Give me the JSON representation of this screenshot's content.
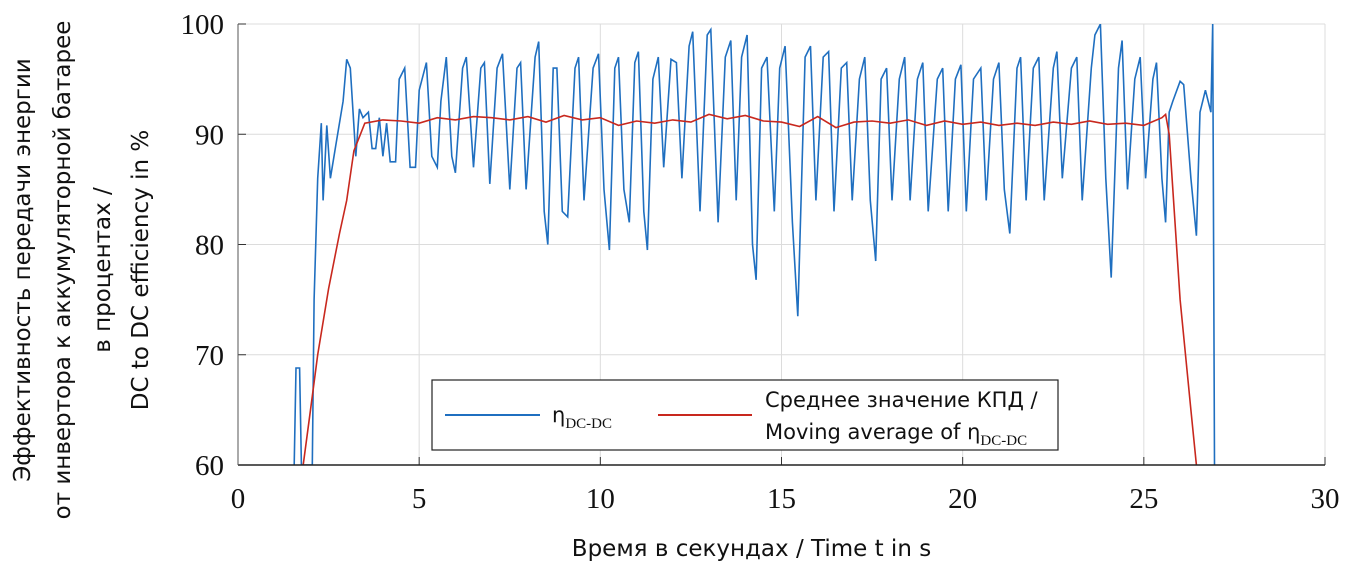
{
  "chart_data": {
    "type": "line",
    "xlabel": "Время в секундах / Time t in s",
    "ylabel": [
      "Эффективность передачи энергии",
      "от инвертора к аккумуляторной батарее",
      "в процентах /",
      "DC to DC efficiency in %"
    ],
    "xlim": [
      0,
      30
    ],
    "xticks": [
      0,
      5,
      10,
      15,
      20,
      25,
      30
    ],
    "ylim": [
      60,
      100
    ],
    "yticks": [
      60,
      70,
      80,
      90,
      100
    ],
    "grid": true,
    "legend": "bottom",
    "series": [
      {
        "name": "ηDC-DC",
        "color": "#1f6fc0",
        "x": [
          1.55,
          1.6,
          1.7,
          1.75,
          2.05,
          2.1,
          2.2,
          2.3,
          2.35,
          2.45,
          2.55,
          2.7,
          2.9,
          3.0,
          3.1,
          3.25,
          3.35,
          3.45,
          3.6,
          3.7,
          3.8,
          3.9,
          4.0,
          4.1,
          4.2,
          4.35,
          4.45,
          4.6,
          4.75,
          4.9,
          5.0,
          5.2,
          5.35,
          5.5,
          5.6,
          5.75,
          5.9,
          6.0,
          6.2,
          6.3,
          6.5,
          6.7,
          6.8,
          6.95,
          7.15,
          7.3,
          7.5,
          7.7,
          7.8,
          7.95,
          8.2,
          8.3,
          8.45,
          8.55,
          8.7,
          8.8,
          8.95,
          9.1,
          9.3,
          9.4,
          9.55,
          9.8,
          9.95,
          10.1,
          10.25,
          10.4,
          10.5,
          10.65,
          10.8,
          10.95,
          11.05,
          11.2,
          11.3,
          11.45,
          11.6,
          11.75,
          11.95,
          12.1,
          12.25,
          12.45,
          12.55,
          12.75,
          12.95,
          13.05,
          13.25,
          13.45,
          13.6,
          13.75,
          13.9,
          14.05,
          14.2,
          14.3,
          14.45,
          14.6,
          14.8,
          14.95,
          15.1,
          15.3,
          15.45,
          15.65,
          15.8,
          15.95,
          16.15,
          16.3,
          16.45,
          16.65,
          16.8,
          16.95,
          17.15,
          17.3,
          17.45,
          17.6,
          17.75,
          17.9,
          18.05,
          18.25,
          18.4,
          18.55,
          18.75,
          18.9,
          19.05,
          19.3,
          19.45,
          19.6,
          19.8,
          19.95,
          20.1,
          20.3,
          20.5,
          20.65,
          20.85,
          21.0,
          21.15,
          21.3,
          21.5,
          21.6,
          21.75,
          21.95,
          22.1,
          22.25,
          22.5,
          22.6,
          22.75,
          23.0,
          23.15,
          23.3,
          23.55,
          23.65,
          23.8,
          23.95,
          24.1,
          24.3,
          24.4,
          24.55,
          24.75,
          24.9,
          25.05,
          25.25,
          25.35,
          25.5,
          25.6,
          25.7,
          25.8,
          26.0,
          26.1,
          26.3,
          26.45,
          26.55,
          26.7,
          26.85,
          26.9,
          26.95
        ],
        "values": [
          60,
          68.8,
          68.8,
          60,
          60,
          75,
          86,
          91,
          84,
          90.8,
          86,
          89,
          93,
          96.8,
          96,
          88,
          92.3,
          91.5,
          92,
          88.7,
          88.7,
          91.5,
          88,
          91,
          87.5,
          87.5,
          95,
          96,
          87,
          87,
          94,
          96.5,
          88,
          87,
          93,
          97,
          88,
          86.5,
          96,
          97,
          87,
          96,
          96.5,
          85.5,
          96,
          97.3,
          85,
          96,
          96.5,
          85,
          97,
          98.4,
          83,
          80,
          96,
          96,
          83,
          82.5,
          96,
          97,
          84,
          96,
          97.3,
          85,
          79.5,
          96,
          97,
          85,
          82,
          96.5,
          97.5,
          83,
          79.5,
          95,
          97,
          87,
          96.8,
          96.5,
          86,
          98,
          99.3,
          83,
          99,
          99.5,
          82,
          97,
          98.5,
          84,
          97,
          99,
          80,
          76.8,
          96,
          97,
          83,
          96,
          98,
          82,
          73.5,
          97,
          98,
          84,
          97,
          97.5,
          83,
          96,
          96.5,
          84,
          95,
          97,
          84,
          78.5,
          95,
          96,
          84,
          95,
          97,
          84,
          95,
          96.5,
          83,
          95,
          96,
          83,
          95,
          96.3,
          83,
          95,
          96,
          84,
          95,
          96.5,
          85,
          81,
          96,
          97,
          84,
          96,
          97,
          84,
          96,
          97.5,
          86,
          96,
          97,
          84,
          96,
          99,
          100,
          86,
          77,
          96,
          98.5,
          85,
          95,
          97,
          86,
          95,
          96.5,
          86,
          82,
          92,
          93,
          94.8,
          94.5,
          86,
          80.8,
          92,
          94,
          92,
          100,
          60
        ]
      },
      {
        "name": "Среднее значение КПД / Moving average of ηDC-DC",
        "color": "#c8281e",
        "x": [
          1.8,
          2.0,
          2.2,
          2.5,
          2.8,
          3.0,
          3.2,
          3.5,
          4,
          4.5,
          5,
          5.5,
          6,
          6.5,
          7,
          7.5,
          8,
          8.5,
          9,
          9.5,
          10,
          10.5,
          11,
          11.5,
          12,
          12.5,
          13,
          13.5,
          14,
          14.5,
          15,
          15.5,
          16,
          16.5,
          17,
          17.5,
          18,
          18.5,
          19,
          19.5,
          20,
          20.5,
          21,
          21.5,
          22,
          22.5,
          23,
          23.5,
          24,
          24.5,
          25,
          25.5,
          25.6,
          25.7,
          26.0,
          26.3,
          26.45
        ],
        "values": [
          60,
          65,
          70,
          76,
          81,
          84,
          88.5,
          91,
          91.3,
          91.2,
          91,
          91.5,
          91.3,
          91.6,
          91.5,
          91.3,
          91.6,
          91.1,
          91.7,
          91.3,
          91.5,
          90.8,
          91.2,
          91,
          91.3,
          91.1,
          91.8,
          91.4,
          91.7,
          91.2,
          91.1,
          90.7,
          91.6,
          90.6,
          91.1,
          91.2,
          91,
          91.3,
          90.8,
          91.2,
          90.9,
          91.1,
          90.8,
          91,
          90.8,
          91.1,
          90.9,
          91.2,
          90.9,
          91,
          90.8,
          91.5,
          91.8,
          90,
          75,
          65,
          60
        ]
      }
    ]
  }
}
